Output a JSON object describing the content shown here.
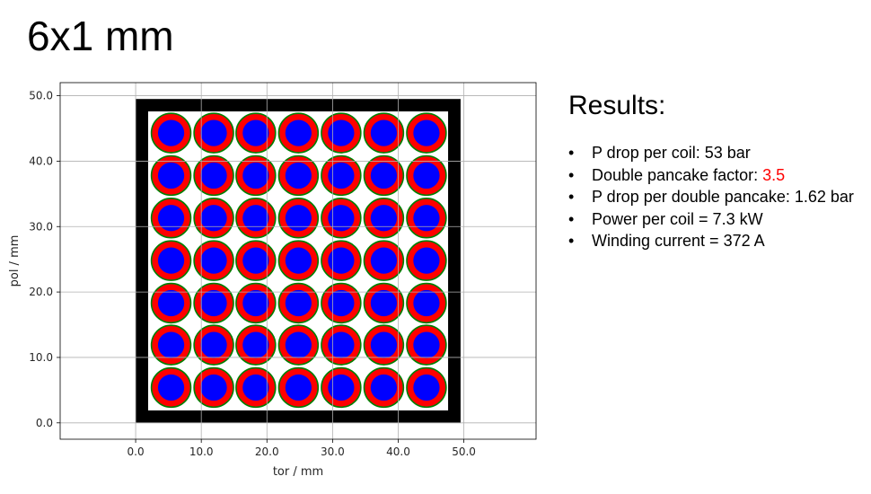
{
  "slide": {
    "title": "6x1 mm"
  },
  "plot": {
    "xlabel": "tor / mm",
    "ylabel": "pol / mm",
    "x_ticks": [
      0.0,
      10.0,
      20.0,
      30.0,
      40.0,
      50.0
    ],
    "y_ticks": [
      0.0,
      10.0,
      20.0,
      30.0,
      40.0,
      50.0
    ],
    "x_tick_labels": [
      "0.0",
      "10.0",
      "20.0",
      "30.0",
      "40.0",
      "50.0"
    ],
    "y_tick_labels": [
      "0.0",
      "10.0",
      "20.0",
      "30.0",
      "40.0",
      "50.0"
    ],
    "xlim": [
      -11.5,
      61.0
    ],
    "ylim": [
      -2.5,
      52.0
    ],
    "grid": true,
    "outer_frame": {
      "x": [
        0.0,
        49.5
      ],
      "y": [
        0.0,
        49.5
      ],
      "wall_thickness": 1.9,
      "color": "#000000"
    },
    "conductors": {
      "rows": 7,
      "cols": 7,
      "x_centers": [
        5.4,
        11.9,
        18.3,
        24.8,
        31.3,
        37.8,
        44.3
      ],
      "y_centers": [
        5.4,
        11.9,
        18.3,
        24.8,
        31.3,
        37.8,
        44.3
      ],
      "outer_diameter": 6.0,
      "bore_diameter": 4.0,
      "jacket_color": "#ff0000",
      "outline_color": "#008000",
      "bore_color": "#0000ff"
    }
  },
  "results": {
    "heading": "Results:",
    "bullet": "•",
    "items": [
      {
        "text": "P drop per coil: 53 bar",
        "highlight": ""
      },
      {
        "text": "Double pancake factor: ",
        "highlight": "3.5"
      },
      {
        "text": "P drop per double pancake: 1.62 bar",
        "highlight": ""
      },
      {
        "text": "Power per coil = 7.3 kW",
        "highlight": ""
      },
      {
        "text": "Winding current = 372 A",
        "highlight": ""
      }
    ],
    "highlight_color": "#ff0000"
  }
}
